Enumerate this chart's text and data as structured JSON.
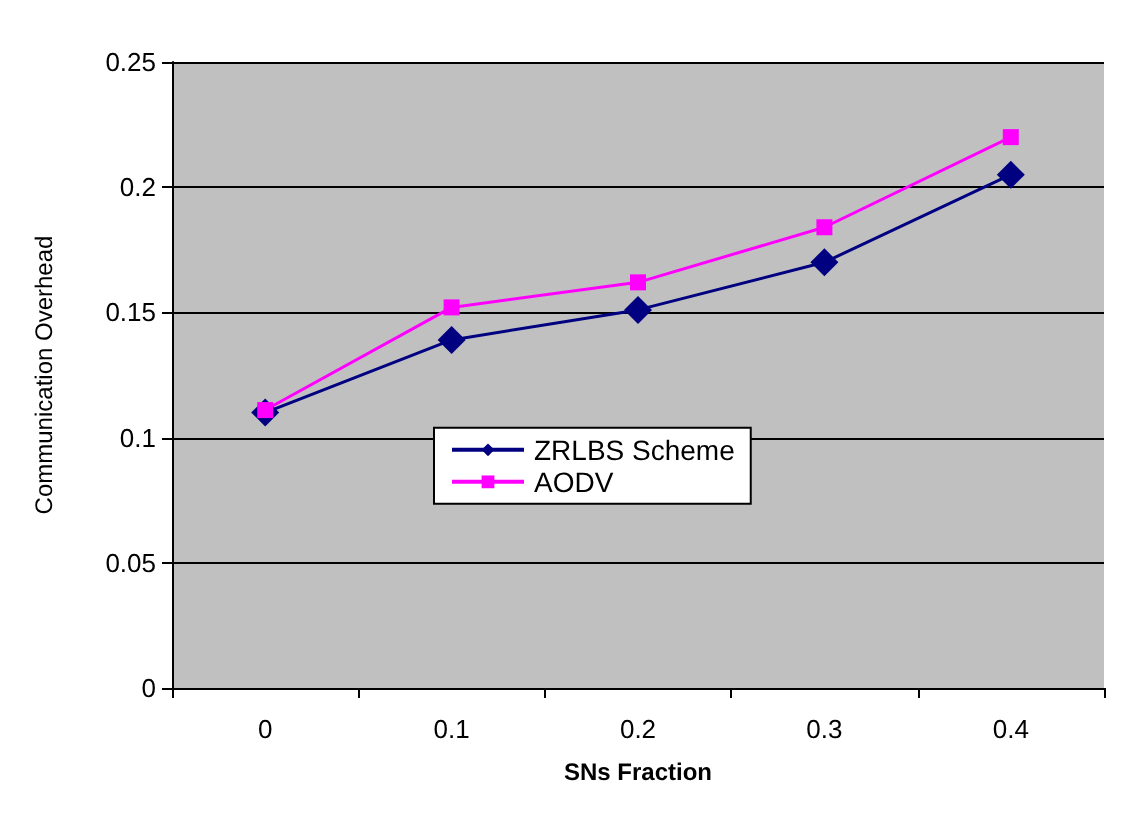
{
  "chart_data": {
    "type": "line",
    "xlabel": "SNs Fraction",
    "ylabel": "Communication Overhead",
    "categories": [
      "0",
      "0.1",
      "0.2",
      "0.3",
      "0.4"
    ],
    "series": [
      {
        "name": "ZRLBS Scheme",
        "color": "#000080",
        "marker": "diamond",
        "values": [
          0.11,
          0.139,
          0.151,
          0.17,
          0.205
        ]
      },
      {
        "name": "AODV",
        "color": "#ff00ff",
        "marker": "square",
        "values": [
          0.111,
          0.152,
          0.162,
          0.184,
          0.22
        ]
      }
    ],
    "ylim": [
      0,
      0.25
    ],
    "yticks": [
      0,
      0.05,
      0.1,
      0.15,
      0.2,
      0.25
    ],
    "grid": "y",
    "legend": "center"
  }
}
